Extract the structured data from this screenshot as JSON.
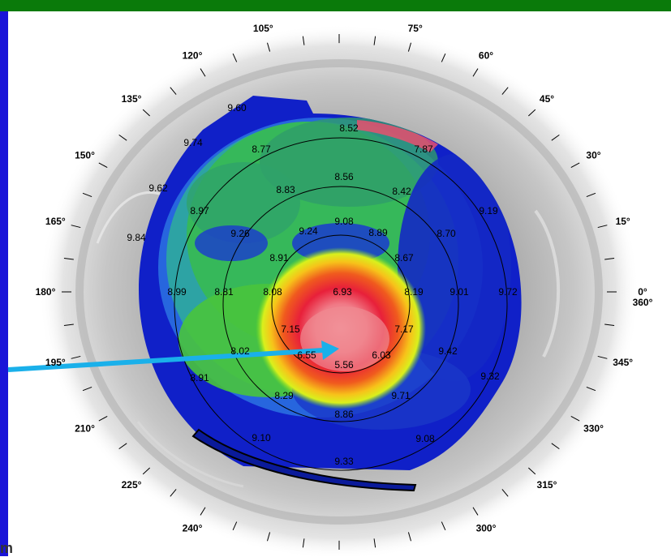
{
  "degree_labels": [
    {
      "text": "0°",
      "angle": 0
    },
    {
      "text": "360°",
      "angle": 0,
      "second": true
    },
    {
      "text": "15°",
      "angle": 15
    },
    {
      "text": "30°",
      "angle": 30
    },
    {
      "text": "45°",
      "angle": 45
    },
    {
      "text": "60°",
      "angle": 60
    },
    {
      "text": "75°",
      "angle": 75
    },
    {
      "text": "105°",
      "angle": 105
    },
    {
      "text": "120°",
      "angle": 120
    },
    {
      "text": "135°",
      "angle": 135
    },
    {
      "text": "150°",
      "angle": 150
    },
    {
      "text": "165°",
      "angle": 165
    },
    {
      "text": "180°",
      "angle": 180
    },
    {
      "text": "195°",
      "angle": 195
    },
    {
      "text": "210°",
      "angle": 210
    },
    {
      "text": "225°",
      "angle": 225
    },
    {
      "text": "240°",
      "angle": 240
    },
    {
      "text": "300°",
      "angle": 300
    },
    {
      "text": "315°",
      "angle": 315
    },
    {
      "text": "330°",
      "angle": 330
    },
    {
      "text": "345°",
      "angle": 345
    }
  ],
  "map_values": [
    "9.60",
    "8.52",
    "9.74",
    "8.77",
    "7.87",
    "8.56",
    "9.62",
    "8.83",
    "8.42",
    "8.97",
    "9.08",
    "9.19",
    "9.84",
    "9.26",
    "9.24",
    "8.89",
    "8.70",
    "8.91",
    "8.67",
    "8.99",
    "8.81",
    "8.08",
    "6.93",
    "8.19",
    "9.01",
    "9.72",
    "7.15",
    "7.17",
    "8.02",
    "6.55",
    "6.03",
    "9.42",
    "8.91",
    "5.56",
    "9.32",
    "8.29",
    "9.71",
    "8.86",
    "9.10",
    "9.08",
    "9.33"
  ],
  "brand_text": "m",
  "colors": {
    "top_bar": "#0a7a0a",
    "left_bar": "#1a14d8",
    "pointer": "#1ab0ea",
    "rings": "#000000"
  }
}
